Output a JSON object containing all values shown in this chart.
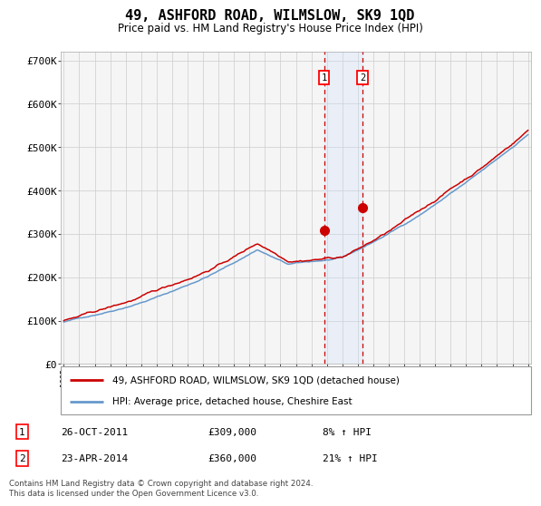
{
  "title": "49, ASHFORD ROAD, WILMSLOW, SK9 1QD",
  "subtitle": "Price paid vs. HM Land Registry's House Price Index (HPI)",
  "legend_line1": "49, ASHFORD ROAD, WILMSLOW, SK9 1QD (detached house)",
  "legend_line2": "HPI: Average price, detached house, Cheshire East",
  "transaction1_date": "26-OCT-2011",
  "transaction1_price": 309000,
  "transaction1_pct": "8%",
  "transaction2_date": "23-APR-2014",
  "transaction2_price": 360000,
  "transaction2_pct": "21%",
  "footer": "Contains HM Land Registry data © Crown copyright and database right 2024.\nThis data is licensed under the Open Government Licence v3.0.",
  "hpi_color": "#6699cc",
  "price_color": "#cc0000",
  "marker_color": "#cc0000",
  "background_color": "#f5f5f5",
  "grid_color": "#cccccc",
  "highlight_color": "#ddeeff",
  "ylim": [
    0,
    720000
  ],
  "yticks": [
    0,
    100000,
    200000,
    300000,
    400000,
    500000,
    600000,
    700000
  ],
  "ytick_labels": [
    "£0",
    "£100K",
    "£200K",
    "£300K",
    "£400K",
    "£500K",
    "£600K",
    "£700K"
  ],
  "year_start": 1995,
  "year_end": 2025,
  "transaction1_year": 2011.82,
  "transaction2_year": 2014.31,
  "seed": 42
}
